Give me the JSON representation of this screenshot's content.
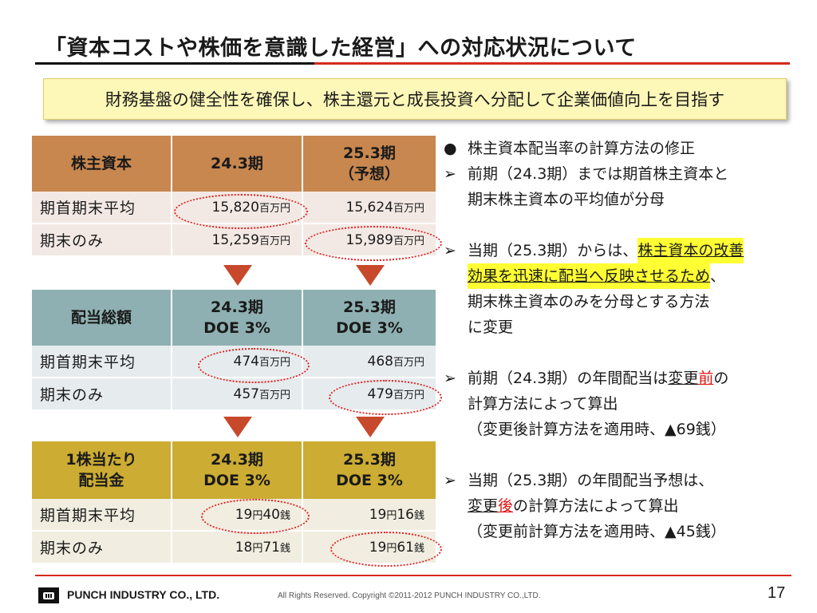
{
  "title": "「資本コストや株価を意識した経営」への対応状況について",
  "banner": "財務基盤の健全性を確保し、株主還元と成長投資へ分配して企業価値向上を目指す",
  "table_equity": {
    "header": [
      "株主資本",
      "24.3期",
      "25.3期",
      "（予想）"
    ],
    "rows": [
      {
        "label": "期首期末平均",
        "v1": "15,820",
        "u1": "百万円",
        "v2": "15,624",
        "u2": "百万円"
      },
      {
        "label": "期末のみ",
        "v1": "15,259",
        "u1": "百万円",
        "v2": "15,989",
        "u2": "百万円"
      }
    ]
  },
  "table_dividend": {
    "header": [
      "配当総額",
      "24.3期",
      "DOE 3%",
      "25.3期",
      "DOE 3%"
    ],
    "rows": [
      {
        "label": "期首期末平均",
        "v1": "474",
        "u1": "百万円",
        "v2": "468",
        "u2": "百万円"
      },
      {
        "label": "期末のみ",
        "v1": "457",
        "u1": "百万円",
        "v2": "479",
        "u2": "百万円"
      }
    ]
  },
  "table_per_share": {
    "header": [
      "1株当たり",
      "配当金",
      "24.3期",
      "DOE 3%",
      "25.3期",
      "DOE 3%"
    ],
    "rows": [
      {
        "label": "期首期末平均",
        "a1": "19",
        "b1": "円",
        "c1": "40",
        "d1": "銭",
        "a2": "19",
        "b2": "円",
        "c2": "16",
        "d2": "銭"
      },
      {
        "label": "期末のみ",
        "a1": "18",
        "b1": "円",
        "c1": "71",
        "d1": "銭",
        "a2": "19",
        "b2": "円",
        "c2": "61",
        "d2": "銭"
      }
    ]
  },
  "notes": {
    "bullet": "●",
    "arrow": "➢",
    "n1": "株主資本配当率の計算方法の修正",
    "n2": [
      "前期（24.3期）までは期首株主資本と",
      "期末株主資本の平均値が分母"
    ],
    "n3": {
      "a": "当期（25.3期）からは、",
      "b": "株主資本の改善",
      "c": "効果を迅速に配当へ反映させるため",
      "d": "、",
      "e": "期末株主資本のみを分母とする方法",
      "f": "に変更"
    },
    "n4": {
      "a": "前期（24.3期）の年間配当は",
      "b": "変更",
      "c": "前",
      "d": "の",
      "e": "計算方法によって算出",
      "f": "（変更後計算方法を適用時、▲69銭）"
    },
    "n5": {
      "a": "当期（25.3期）の年間配当予想は、",
      "b": "変更",
      "c": "後",
      "d": "の計算方法によって算出",
      "e": "（変更前計算方法を適用時、▲45銭）"
    }
  },
  "footer": {
    "company": "PUNCH INDUSTRY CO., LTD.",
    "copyright": "All Rights Reserved.  Copyright ©2011-2012  PUNCH  INDUSTRY  CO.,LTD.",
    "page": "17"
  }
}
